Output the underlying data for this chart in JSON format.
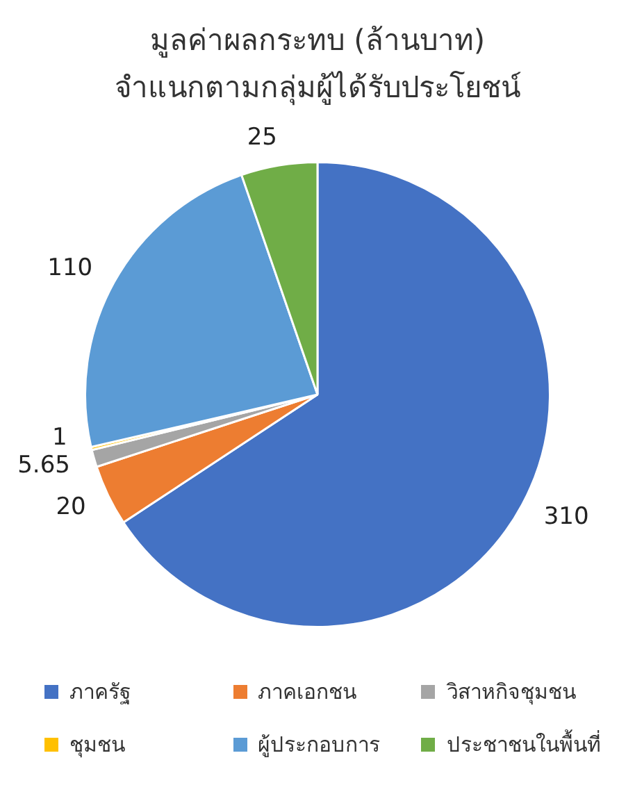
{
  "chart_data": {
    "type": "pie",
    "title": "มูลค่าผลกระทบ (ล้านบาท)\nจำแนกตามกลุ่มผู้ได้รับประโยชน์",
    "categories": [
      "ภาครัฐ",
      "ภาคเอกชน",
      "วิสาหกิจชุมชน",
      "ชุมชน",
      "ผู้ประกอบการ",
      "ประชาชนในพื้นที่"
    ],
    "values": [
      310,
      20,
      5.65,
      1,
      110,
      25
    ],
    "colors": [
      "#4472c4",
      "#ed7d31",
      "#a5a5a5",
      "#ffc000",
      "#5b9bd5",
      "#70ad47"
    ],
    "data_labels": true,
    "legend": "bottom"
  }
}
